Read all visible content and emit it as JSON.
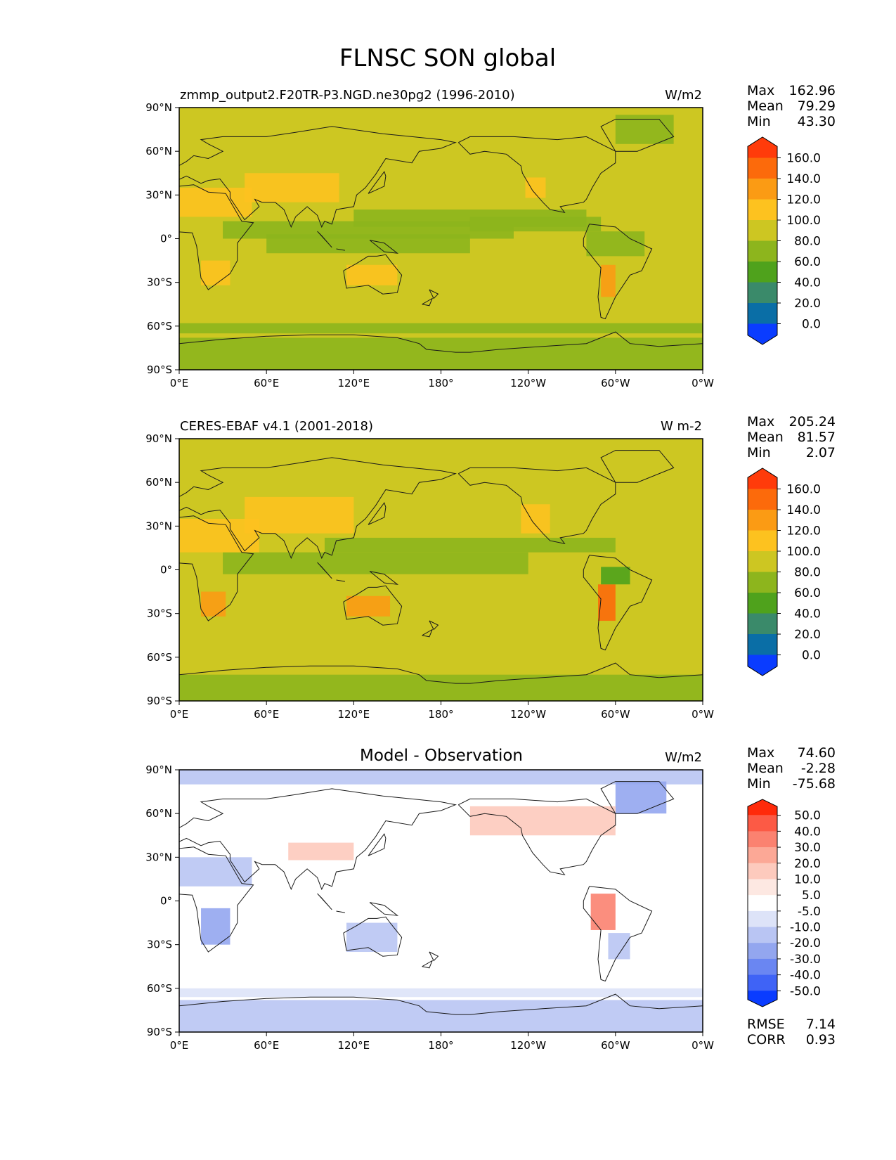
{
  "figure": {
    "title": "FLNSC SON global"
  },
  "axes": {
    "lat_ticks": [
      "90°N",
      "60°N",
      "30°N",
      "0°",
      "30°S",
      "60°S",
      "90°S"
    ],
    "lon_ticks": [
      "0°E",
      "60°E",
      "120°E",
      "180°",
      "120°W",
      "60°W",
      "0°W"
    ]
  },
  "panels": [
    {
      "title_left": "zmmp_output2.F20TR-P3.NGD.ne30pg2 (1996-2010)",
      "title_center": "",
      "units": "W/m2",
      "stats": [
        {
          "label": "Max",
          "value": "162.96"
        },
        {
          "label": "Mean",
          "value": "79.29"
        },
        {
          "label": "Min",
          "value": "43.30"
        }
      ],
      "colorbar": {
        "labels": [
          "160.0",
          "140.0",
          "120.0",
          "100.0",
          "80.0",
          "60.0",
          "40.0",
          "20.0",
          "0.0"
        ],
        "colors": [
          "#ff3b0a",
          "#fc6a0b",
          "#fb9b14",
          "#fdc21f",
          "#cdc622",
          "#8db51d",
          "#4fa21c",
          "#3a8a6a",
          "#0a6ea6",
          "#0a3cff"
        ]
      },
      "background_color": "#cdc622"
    },
    {
      "title_left": "CERES-EBAF v4.1 (2001-2018)",
      "title_center": "",
      "units": "W m-2",
      "stats": [
        {
          "label": "Max",
          "value": "205.24"
        },
        {
          "label": "Mean",
          "value": "81.57"
        },
        {
          "label": "Min",
          "value": "2.07"
        }
      ],
      "colorbar": {
        "labels": [
          "160.0",
          "140.0",
          "120.0",
          "100.0",
          "80.0",
          "60.0",
          "40.0",
          "20.0",
          "0.0"
        ],
        "colors": [
          "#ff3b0a",
          "#fc6a0b",
          "#fb9b14",
          "#fdc21f",
          "#cdc622",
          "#8db51d",
          "#4fa21c",
          "#3a8a6a",
          "#0a6ea6",
          "#0a3cff"
        ]
      },
      "background_color": "#cdc622"
    },
    {
      "title_left": "",
      "title_center": "Model - Observation",
      "units": "W/m2",
      "stats": [
        {
          "label": "Max",
          "value": "74.60"
        },
        {
          "label": "Mean",
          "value": "-2.28"
        },
        {
          "label": "Min",
          "value": "-75.68"
        }
      ],
      "colorbar": {
        "labels": [
          "50.0",
          "40.0",
          "30.0",
          "20.0",
          "10.0",
          "5.0",
          "-5.0",
          "-10.0",
          "-20.0",
          "-30.0",
          "-40.0",
          "-50.0"
        ],
        "colors": [
          "#ff2a0a",
          "#fc5a45",
          "#fb8270",
          "#fca896",
          "#fdcabd",
          "#fde8e2",
          "#ffffff",
          "#dde3f8",
          "#b9c5f3",
          "#93a6ef",
          "#6a86f2",
          "#3f63f6",
          "#0a3cff"
        ]
      },
      "background_color": "#fdfdfd",
      "bottom_stats": [
        {
          "label": "RMSE",
          "value": "7.14"
        },
        {
          "label": "CORR",
          "value": "0.93"
        }
      ]
    }
  ],
  "chart_data": [
    {
      "type": "heatmap",
      "title": "zmmp_output2.F20TR-P3.NGD.ne30pg2 (1996-2010)",
      "units": "W/m2",
      "xlim": [
        0,
        360
      ],
      "ylim": [
        -90,
        90
      ],
      "levels": [
        0,
        20,
        40,
        60,
        80,
        100,
        120,
        140,
        160
      ],
      "summary": {
        "max": 162.96,
        "mean": 79.29,
        "min": 43.3
      },
      "regions": [
        {
          "lon": [
            0,
            360
          ],
          "lat": [
            -90,
            90
          ],
          "value": 85
        },
        {
          "lon": [
            0,
            360
          ],
          "lat": [
            -90,
            -68
          ],
          "value": 65
        },
        {
          "lon": [
            0,
            360
          ],
          "lat": [
            -65,
            -58
          ],
          "value": 70
        },
        {
          "lon": [
            30,
            230
          ],
          "lat": [
            0,
            12
          ],
          "value": 65
        },
        {
          "lon": [
            60,
            200
          ],
          "lat": [
            -10,
            3
          ],
          "value": 70
        },
        {
          "lon": [
            120,
            280
          ],
          "lat": [
            8,
            20
          ],
          "value": 70
        },
        {
          "lon": [
            200,
            290
          ],
          "lat": [
            5,
            15
          ],
          "value": 65
        },
        {
          "lon": [
            280,
            320
          ],
          "lat": [
            -12,
            5
          ],
          "value": 65
        },
        {
          "lon": [
            0,
            50
          ],
          "lat": [
            15,
            35
          ],
          "value": 110
        },
        {
          "lon": [
            45,
            110
          ],
          "lat": [
            25,
            45
          ],
          "value": 110
        },
        {
          "lon": [
            15,
            35
          ],
          "lat": [
            -32,
            -15
          ],
          "value": 110
        },
        {
          "lon": [
            115,
            150
          ],
          "lat": [
            -32,
            -18
          ],
          "value": 115
        },
        {
          "lon": [
            290,
            300
          ],
          "lat": [
            -40,
            -18
          ],
          "value": 130
        },
        {
          "lon": [
            238,
            252
          ],
          "lat": [
            28,
            42
          ],
          "value": 105
        },
        {
          "lon": [
            300,
            340
          ],
          "lat": [
            65,
            85
          ],
          "value": 60
        }
      ]
    },
    {
      "type": "heatmap",
      "title": "CERES-EBAF v4.1 (2001-2018)",
      "units": "W m-2",
      "xlim": [
        0,
        360
      ],
      "ylim": [
        -90,
        90
      ],
      "levels": [
        0,
        20,
        40,
        60,
        80,
        100,
        120,
        140,
        160
      ],
      "summary": {
        "max": 205.24,
        "mean": 81.57,
        "min": 2.07
      },
      "regions": [
        {
          "lon": [
            0,
            360
          ],
          "lat": [
            -90,
            90
          ],
          "value": 85
        },
        {
          "lon": [
            0,
            360
          ],
          "lat": [
            -90,
            -72
          ],
          "value": 70
        },
        {
          "lon": [
            30,
            240
          ],
          "lat": [
            -3,
            12
          ],
          "value": 70
        },
        {
          "lon": [
            100,
            300
          ],
          "lat": [
            12,
            22
          ],
          "value": 70
        },
        {
          "lon": [
            0,
            55
          ],
          "lat": [
            12,
            35
          ],
          "value": 115
        },
        {
          "lon": [
            45,
            120
          ],
          "lat": [
            25,
            50
          ],
          "value": 115
        },
        {
          "lon": [
            15,
            32
          ],
          "lat": [
            -32,
            -15
          ],
          "value": 120
        },
        {
          "lon": [
            115,
            145
          ],
          "lat": [
            -32,
            -18
          ],
          "value": 130
        },
        {
          "lon": [
            288,
            300
          ],
          "lat": [
            -35,
            -10
          ],
          "value": 150
        },
        {
          "lon": [
            290,
            310
          ],
          "lat": [
            -10,
            2
          ],
          "value": 45
        },
        {
          "lon": [
            235,
            255
          ],
          "lat": [
            25,
            45
          ],
          "value": 115
        }
      ]
    },
    {
      "type": "heatmap",
      "title": "Model - Observation",
      "units": "W/m2",
      "xlim": [
        0,
        360
      ],
      "ylim": [
        -90,
        90
      ],
      "levels": [
        -50,
        -40,
        -30,
        -20,
        -10,
        -5,
        5,
        10,
        20,
        30,
        40,
        50
      ],
      "summary": {
        "max": 74.6,
        "mean": -2.28,
        "min": -75.68,
        "rmse": 7.14,
        "corr": 0.93
      },
      "regions": [
        {
          "lon": [
            0,
            360
          ],
          "lat": [
            -90,
            90
          ],
          "value": 0
        },
        {
          "lon": [
            0,
            360
          ],
          "lat": [
            -90,
            -68
          ],
          "value": -15
        },
        {
          "lon": [
            0,
            360
          ],
          "lat": [
            -66,
            -60
          ],
          "value": -8
        },
        {
          "lon": [
            0,
            360
          ],
          "lat": [
            80,
            90
          ],
          "value": -12
        },
        {
          "lon": [
            300,
            335
          ],
          "lat": [
            60,
            82
          ],
          "value": -30
        },
        {
          "lon": [
            0,
            50
          ],
          "lat": [
            10,
            30
          ],
          "value": -18
        },
        {
          "lon": [
            15,
            35
          ],
          "lat": [
            -30,
            -5
          ],
          "value": -22
        },
        {
          "lon": [
            115,
            150
          ],
          "lat": [
            -35,
            -15
          ],
          "value": -18
        },
        {
          "lon": [
            75,
            120
          ],
          "lat": [
            28,
            40
          ],
          "value": 12
        },
        {
          "lon": [
            200,
            300
          ],
          "lat": [
            45,
            65
          ],
          "value": 12
        },
        {
          "lon": [
            283,
            300
          ],
          "lat": [
            -20,
            5
          ],
          "value": 35
        },
        {
          "lon": [
            295,
            310
          ],
          "lat": [
            -40,
            -22
          ],
          "value": -20
        }
      ]
    }
  ]
}
